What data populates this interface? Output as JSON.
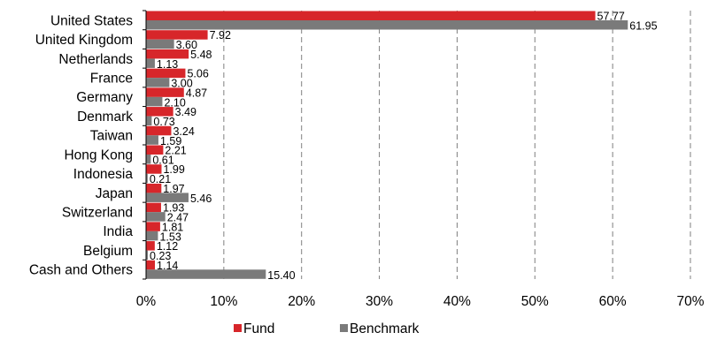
{
  "chart_data": {
    "type": "bar",
    "orientation": "horizontal",
    "title": "",
    "xlabel": "",
    "ylabel": "",
    "categories": [
      "United States",
      "United Kingdom",
      "Netherlands",
      "France",
      "Germany",
      "Denmark",
      "Taiwan",
      "Hong Kong",
      "Indonesia",
      "Japan",
      "Switzerland",
      "India",
      "Belgium",
      "Cash and Others"
    ],
    "series": [
      {
        "name": "Fund",
        "color": "#d7262a",
        "values": [
          57.77,
          7.92,
          5.48,
          5.06,
          4.87,
          3.49,
          3.24,
          2.21,
          1.99,
          1.97,
          1.93,
          1.81,
          1.12,
          1.14
        ]
      },
      {
        "name": "Benchmark",
        "color": "#7a7a7a",
        "values": [
          61.95,
          3.6,
          1.13,
          3.0,
          2.1,
          0.73,
          1.59,
          0.61,
          0.21,
          5.46,
          2.47,
          1.53,
          0.23,
          15.4
        ]
      }
    ],
    "value_labels": {
      "Fund": [
        "57.77",
        "7.92",
        "5.48",
        "5.06",
        "4.87",
        "3.49",
        "3.24",
        "2.21",
        "1.99",
        "1.97",
        "1.93",
        "1.81",
        "1.12",
        "1.14"
      ],
      "Benchmark": [
        "61.95",
        "3.60",
        "1.13",
        "3.00",
        "2.10",
        "0.73",
        "1.59",
        "0.61",
        "0.21",
        "5.46",
        "2.47",
        "1.53",
        "0.23",
        "15.40"
      ]
    },
    "xlim": [
      0,
      70
    ],
    "xticks": [
      0,
      10,
      20,
      30,
      40,
      50,
      60,
      70
    ],
    "xtick_labels": [
      "0%",
      "10%",
      "20%",
      "30%",
      "40%",
      "50%",
      "60%",
      "70%"
    ],
    "grid": "vertical dashed",
    "legend_position": "bottom"
  }
}
